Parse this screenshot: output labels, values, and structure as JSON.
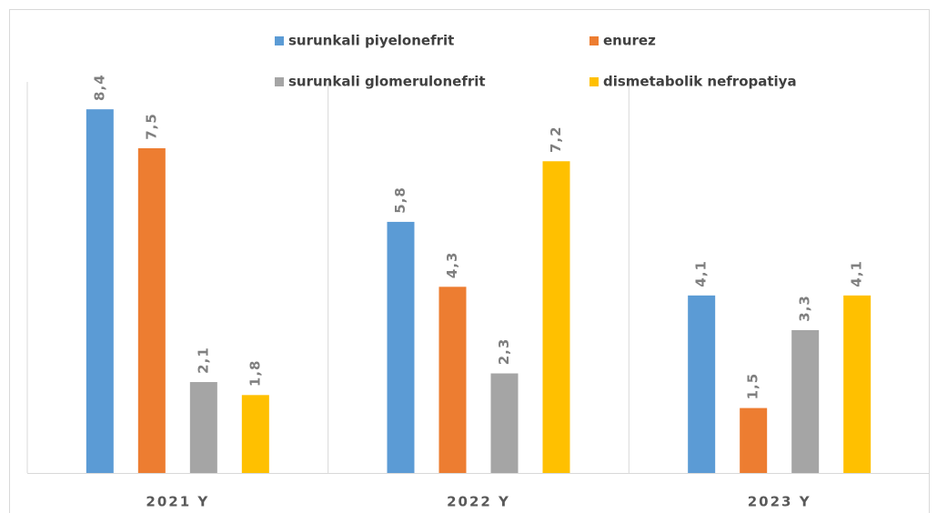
{
  "chart_data": {
    "type": "bar",
    "categories": [
      "2021 Y",
      "2022 Y",
      "2023 Y"
    ],
    "series": [
      {
        "name": "surunkali piyelonefrit",
        "color": "#5b9bd5",
        "values": [
          8.4,
          5.8,
          4.1
        ],
        "value_labels": [
          "8,4",
          "5,8",
          "4,1"
        ]
      },
      {
        "name": "enurez",
        "color": "#ed7d31",
        "values": [
          7.5,
          4.3,
          1.5
        ],
        "value_labels": [
          "7,5",
          "4,3",
          "1,5"
        ]
      },
      {
        "name": "surunkali glomerulonefrit",
        "color": "#a5a5a5",
        "values": [
          2.1,
          2.3,
          3.3
        ],
        "value_labels": [
          "2,1",
          "2,3",
          "3,3"
        ]
      },
      {
        "name": "dismetabolik nefropatiya",
        "color": "#ffc000",
        "values": [
          1.8,
          7.2,
          4.1
        ],
        "value_labels": [
          "1,8",
          "7,2",
          "4,1"
        ]
      }
    ],
    "legend": "top"
  }
}
